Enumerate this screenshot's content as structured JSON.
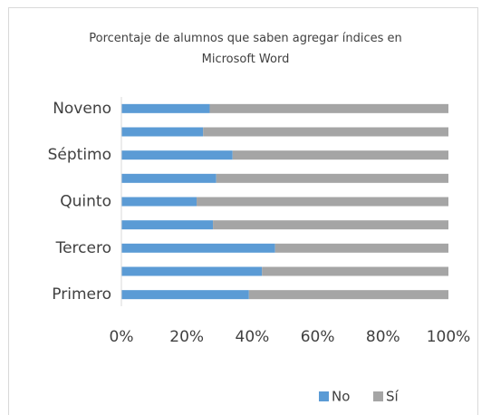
{
  "chart_data": {
    "type": "stacked-bar-horizontal",
    "title": "Porcentaje de alumnos que saben agregar índices en Microsoft Word",
    "categories": [
      "Primero",
      null,
      "Tercero",
      null,
      "Quinto",
      null,
      "Séptimo",
      null,
      "Noveno"
    ],
    "series": [
      {
        "name": "No",
        "color": "#5b9bd5",
        "values": [
          39,
          43,
          47,
          28,
          23,
          29,
          34,
          25,
          27
        ]
      },
      {
        "name": "Sí",
        "color": "#a5a5a5",
        "values": [
          61,
          57,
          53,
          72,
          77,
          71,
          66,
          75,
          73
        ]
      }
    ],
    "xlim": [
      0,
      100
    ],
    "xticks": [
      {
        "value": 0,
        "label": "0%"
      },
      {
        "value": 20,
        "label": "20%"
      },
      {
        "value": 40,
        "label": "40%"
      },
      {
        "value": 60,
        "label": "60%"
      },
      {
        "value": 80,
        "label": "80%"
      },
      {
        "value": 100,
        "label": "100%"
      }
    ],
    "legend": "bottom"
  }
}
